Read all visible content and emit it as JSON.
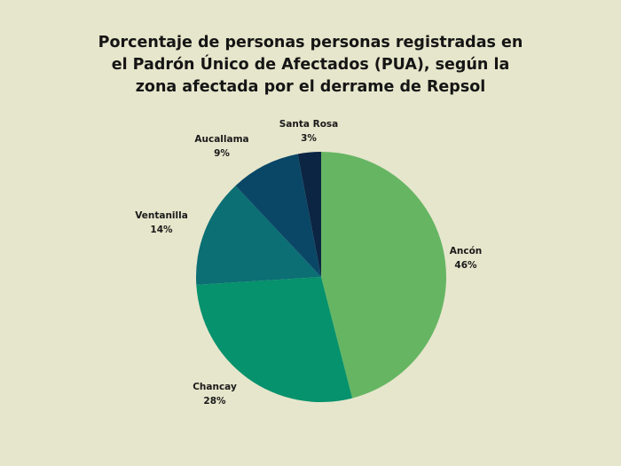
{
  "chart_data": {
    "type": "pie",
    "title": "Porcentaje de personas personas registradas en\nel Padrón Único de Afectados (PUA), según la\nzona afectada por el derrame de Repsol",
    "categories": [
      "Ancón",
      "Chancay",
      "Ventanilla",
      "Aucallama",
      "Santa Rosa"
    ],
    "values": [
      46,
      28,
      14,
      9,
      3
    ],
    "value_labels": [
      "46%",
      "28%",
      "14%",
      "9%",
      "3%"
    ],
    "colors": [
      "#66b563",
      "#05926c",
      "#0b6f74",
      "#0a4767",
      "#0b2543"
    ],
    "start": "top",
    "direction": "clockwise",
    "legend": "none"
  }
}
